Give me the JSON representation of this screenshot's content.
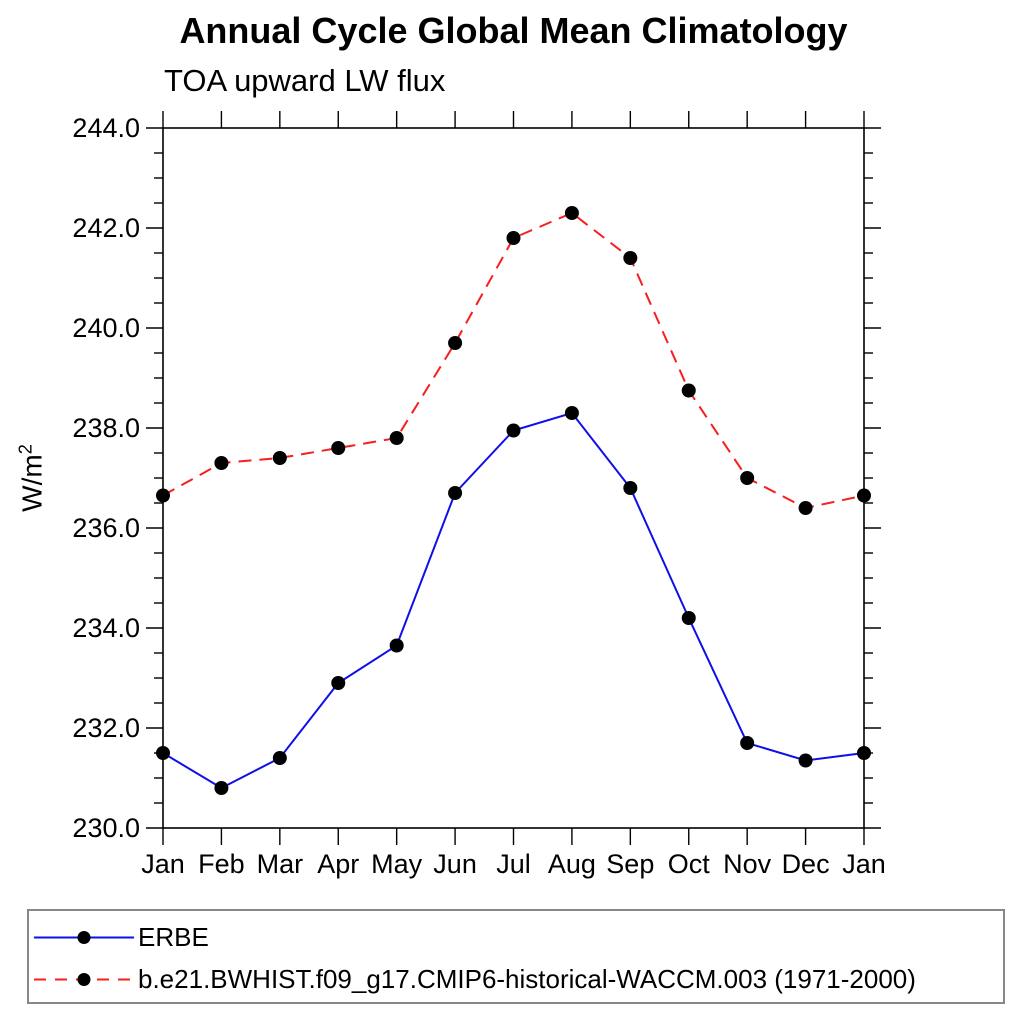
{
  "chart_data": {
    "type": "line",
    "title": "Annual Cycle Global Mean Climatology",
    "subtitle": "TOA upward LW flux",
    "ylabel_base": "W/m",
    "ylabel_sup": "2",
    "xlabel": "",
    "categories": [
      "Jan",
      "Feb",
      "Mar",
      "Apr",
      "May",
      "Jun",
      "Jul",
      "Aug",
      "Sep",
      "Oct",
      "Nov",
      "Dec",
      "Jan"
    ],
    "ylim": [
      230.0,
      244.0
    ],
    "ytick_step": 2.0,
    "yminor_step": 0.5,
    "ytick_labels": [
      "230.0",
      "232.0",
      "234.0",
      "236.0",
      "238.0",
      "240.0",
      "242.0",
      "244.0"
    ],
    "grid": false,
    "legend_position": "bottom",
    "marker_color": "#000000",
    "frame_color": "#000000",
    "series": [
      {
        "name": "ERBE",
        "color": "#0f0fe8",
        "line_style": "solid",
        "values": [
          231.5,
          230.8,
          231.4,
          232.9,
          233.65,
          236.7,
          237.95,
          238.3,
          236.8,
          234.2,
          231.7,
          231.35,
          231.5
        ]
      },
      {
        "name": "b.e21.BWHIST.f09_g17.CMIP6-historical-WACCM.003 (1971-2000)",
        "color": "#f71e1e",
        "line_style": "dashed",
        "values": [
          236.65,
          237.3,
          237.4,
          237.6,
          237.8,
          239.7,
          241.8,
          242.3,
          241.4,
          238.75,
          237.0,
          236.4,
          236.65
        ]
      }
    ]
  }
}
